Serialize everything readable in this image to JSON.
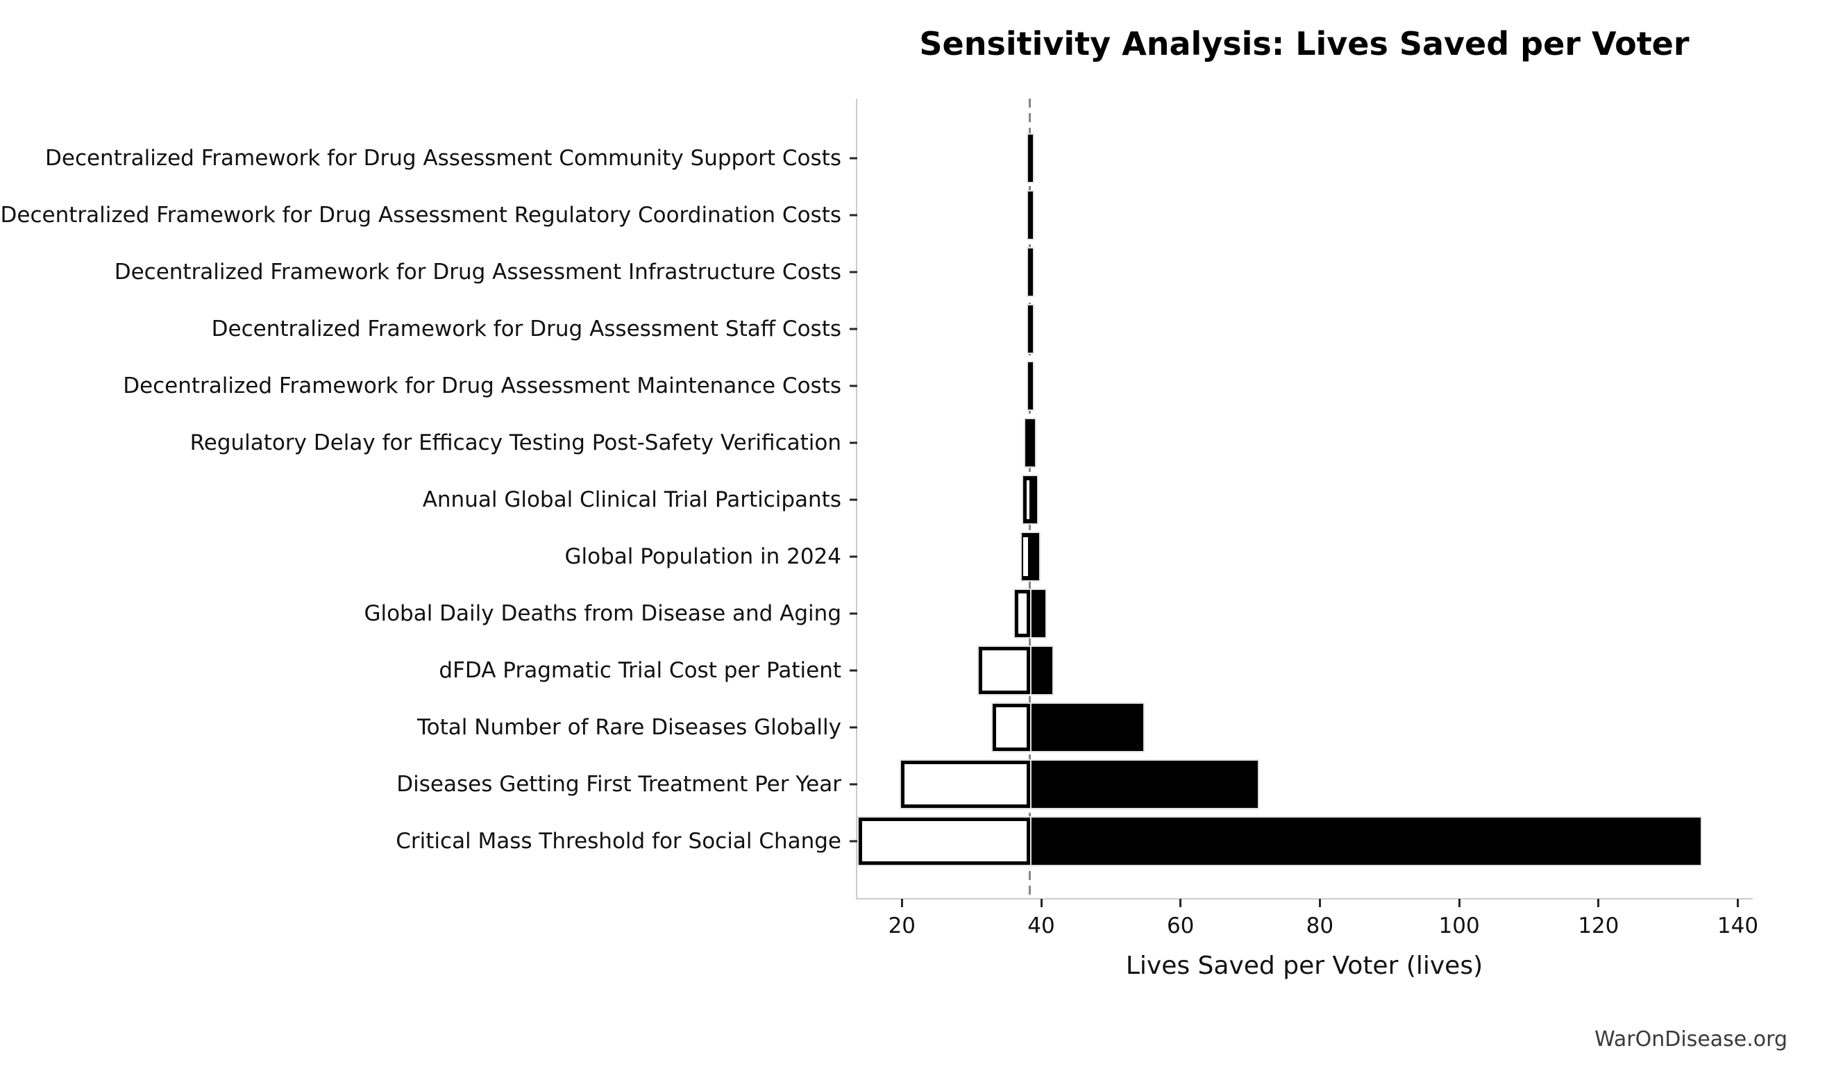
{
  "title": "Sensitivity Analysis: Lives Saved per Voter",
  "watermark": {
    "text": "WarOnDisease.org"
  },
  "chart_data": {
    "type": "bar",
    "subtype": "tornado-sensitivity",
    "title": "Sensitivity Analysis: Lives Saved per Voter",
    "xlabel": "Lives Saved per Voter (lives)",
    "ylabel": "",
    "baseline": 38.4,
    "xlim": [
      13.4,
      142.1
    ],
    "x_ticks": [
      20,
      40,
      60,
      80,
      100,
      120,
      140
    ],
    "grid": false,
    "legend": null,
    "bar_colors": {
      "low_scenario": "#ffffff",
      "high_scenario": "#000000"
    },
    "baseline_line_color": "#858585",
    "rows": [
      {
        "label": "Decentralized Framework for Drug Assessment Community Support Costs",
        "black": [
          38.1,
          38.8
        ],
        "white": null,
        "white_style": "none"
      },
      {
        "label": "Decentralized Framework for Drug Assessment Regulatory Coordination Costs",
        "black": [
          38.1,
          38.8
        ],
        "white": null,
        "white_style": "none"
      },
      {
        "label": "Decentralized Framework for Drug Assessment Infrastructure Costs",
        "black": [
          38.1,
          38.8
        ],
        "white": null,
        "white_style": "none"
      },
      {
        "label": "Decentralized Framework for Drug Assessment Staff Costs",
        "black": [
          38.1,
          38.8
        ],
        "white": null,
        "white_style": "none"
      },
      {
        "label": "Decentralized Framework for Drug Assessment Maintenance Costs",
        "black": [
          38.1,
          38.8
        ],
        "white": null,
        "white_style": "none"
      },
      {
        "label": "Regulatory Delay for Efficacy Testing Post-Safety Verification",
        "black": [
          37.7,
          39.1
        ],
        "white": null,
        "white_style": "none"
      },
      {
        "label": "Annual Global Clinical Trial Participants",
        "black": [
          37.4,
          39.4
        ],
        "white": [
          37.9,
          38.3
        ],
        "white_style": "sliver"
      },
      {
        "label": "Global Population in 2024",
        "black": [
          37.2,
          39.7
        ],
        "white": [
          37.4,
          38.1
        ],
        "white_style": "sliver"
      },
      {
        "label": "Global Daily Deaths from Disease and Aging",
        "black": [
          38.4,
          40.6
        ],
        "white": [
          36.2,
          38.4
        ],
        "white_style": "outline"
      },
      {
        "label": "dFDA Pragmatic Trial Cost per Patient",
        "black": [
          38.4,
          41.6
        ],
        "white": [
          31.0,
          38.4
        ],
        "white_style": "outline"
      },
      {
        "label": "Total Number of Rare Diseases Globally",
        "black": [
          38.4,
          54.6
        ],
        "white": [
          33.0,
          38.4
        ],
        "white_style": "outline"
      },
      {
        "label": "Diseases Getting First Treatment Per Year",
        "black": [
          38.4,
          71.1
        ],
        "white": [
          19.9,
          38.4
        ],
        "white_style": "outline"
      },
      {
        "label": "Critical Mass Threshold for Social Change",
        "black": [
          38.4,
          134.7
        ],
        "white": [
          13.8,
          38.4
        ],
        "white_style": "outline"
      }
    ]
  }
}
